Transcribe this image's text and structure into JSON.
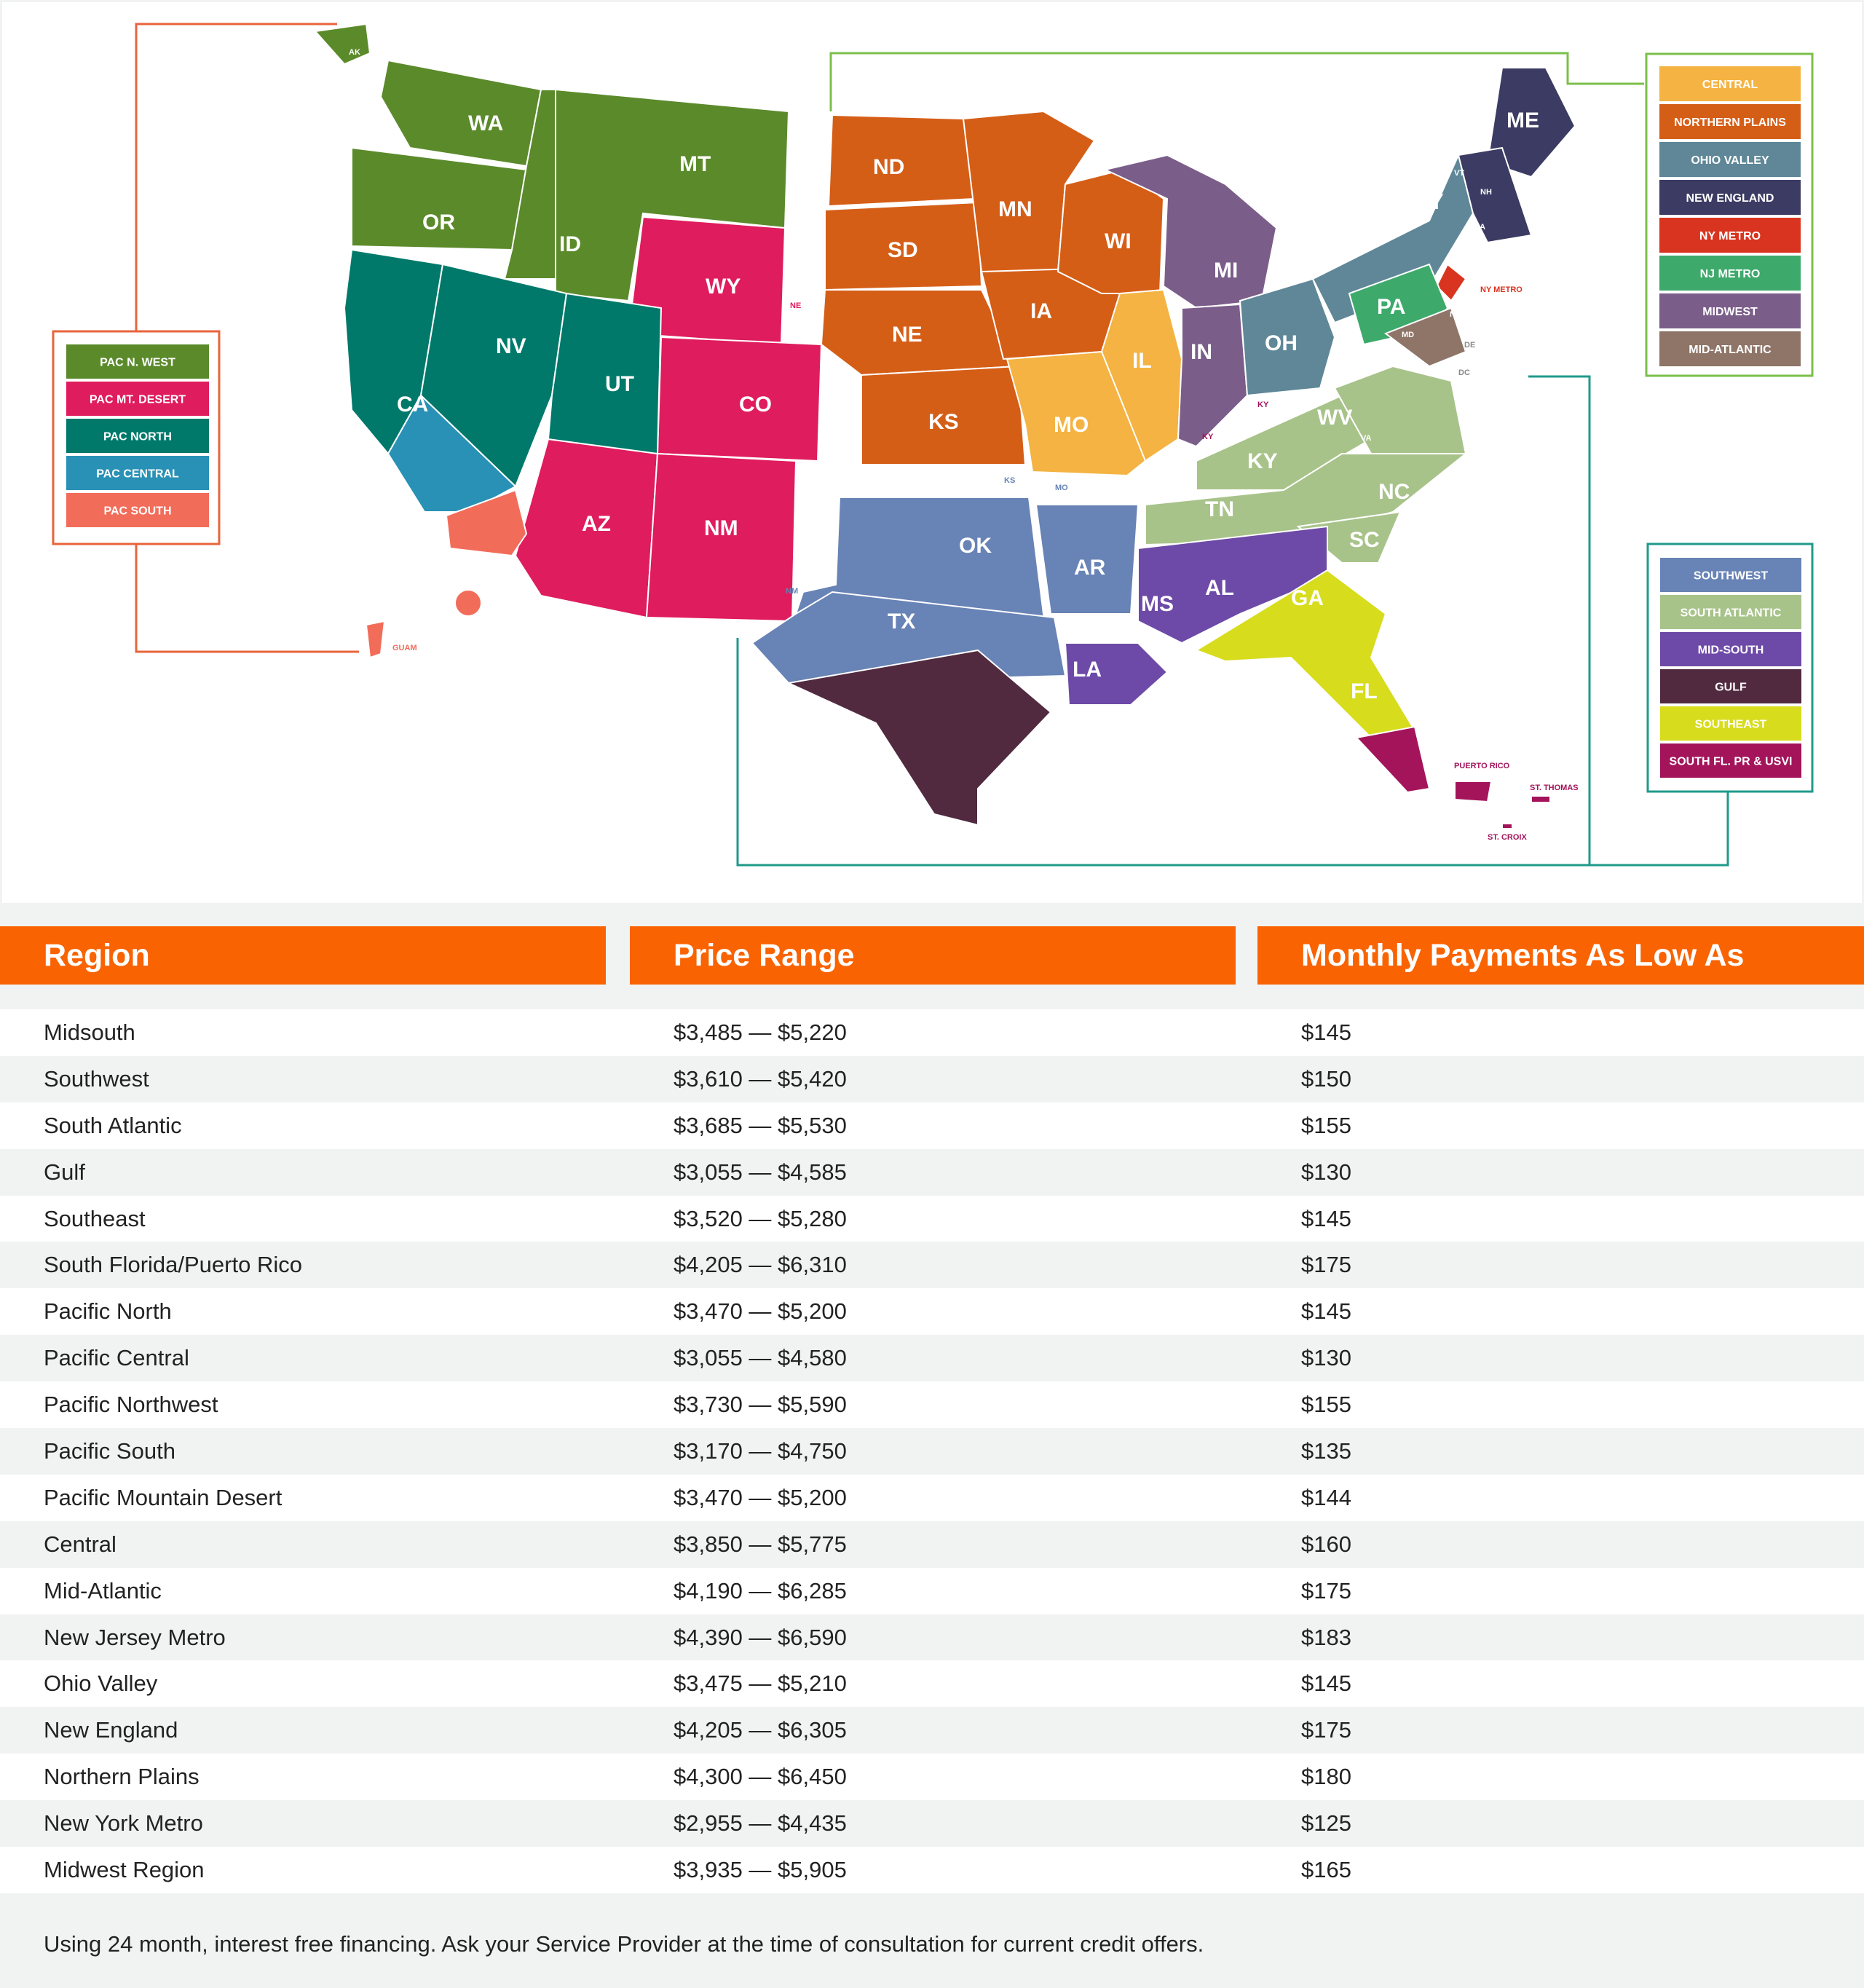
{
  "map": {
    "west_legend": [
      {
        "label": "PAC N. WEST",
        "color": "#5b8a2b"
      },
      {
        "label": "PAC MT. DESERT",
        "color": "#df1c5d"
      },
      {
        "label": "PAC NORTH",
        "color": "#00796b"
      },
      {
        "label": "PAC CENTRAL",
        "color": "#2891b5"
      },
      {
        "label": "PAC SOUTH",
        "color": "#f26c5a"
      }
    ],
    "north_legend": [
      {
        "label": "CENTRAL",
        "color": "#f4b342"
      },
      {
        "label": "NORTHERN PLAINS",
        "color": "#d55e17"
      },
      {
        "label": "OHIO VALLEY",
        "color": "#5f8797"
      },
      {
        "label": "NEW ENGLAND",
        "color": "#3b3b63"
      },
      {
        "label": "NY METRO",
        "color": "#d8341f"
      },
      {
        "label": "NJ METRO",
        "color": "#3daa6b"
      },
      {
        "label": "MIDWEST",
        "color": "#7b5d8a"
      },
      {
        "label": "MID-ATLANTIC",
        "color": "#8e7568"
      }
    ],
    "south_legend": [
      {
        "label": "SOUTHWEST",
        "color": "#6883b5"
      },
      {
        "label": "SOUTH ATLANTIC",
        "color": "#a8c38a"
      },
      {
        "label": "MID-SOUTH",
        "color": "#6d4aa7"
      },
      {
        "label": "GULF",
        "color": "#512a40"
      },
      {
        "label": "SOUTHEAST",
        "color": "#d7dc1d"
      },
      {
        "label": "SOUTH FL. PR & USVI",
        "color": "#a3145b"
      }
    ],
    "state_labels": [
      "AK",
      "WA",
      "MT",
      "OR",
      "ID",
      "WY",
      "ND",
      "MN",
      "WI",
      "SD",
      "MI",
      "NY",
      "ME",
      "VT",
      "NH",
      "MA",
      "CT",
      "RI",
      "NE",
      "IA",
      "IL",
      "IN",
      "OH",
      "PA",
      "NJ",
      "DE",
      "MD",
      "DC",
      "NV",
      "UT",
      "CA",
      "CO",
      "KS",
      "MO",
      "KY",
      "WV",
      "VA",
      "NC",
      "TN",
      "SC",
      "OK",
      "AR",
      "AZ",
      "NM",
      "TX",
      "MS",
      "AL",
      "GA",
      "LA",
      "FL"
    ],
    "small_labels": {
      "ne": "NE",
      "ny_metro": "NY METRO",
      "ky1": "KY",
      "ky2": "KY",
      "ks": "KS",
      "mo": "MO",
      "nm": "NM",
      "guam": "GUAM",
      "puerto_rico": "PUERTO RICO",
      "st_thomas": "ST. THOMAS",
      "st_croix": "ST. CROIX"
    }
  },
  "table": {
    "headers": {
      "region": "Region",
      "price": "Price Range",
      "monthly": "Monthly Payments As Low As"
    },
    "rows": [
      {
        "region": "Midsouth",
        "price": "$3,485 — $5,220",
        "monthly": "$145"
      },
      {
        "region": "Southwest",
        "price": "$3,610 — $5,420",
        "monthly": "$150"
      },
      {
        "region": "South Atlantic",
        "price": "$3,685 — $5,530",
        "monthly": "$155"
      },
      {
        "region": "Gulf",
        "price": "$3,055 — $4,585",
        "monthly": "$130"
      },
      {
        "region": "Southeast",
        "price": "$3,520 — $5,280",
        "monthly": "$145"
      },
      {
        "region": "South Florida/Puerto Rico",
        "price": "$4,205 — $6,310",
        "monthly": "$175"
      },
      {
        "region": "Pacific North",
        "price": "$3,470 — $5,200",
        "monthly": "$145"
      },
      {
        "region": "Pacific Central",
        "price": "$3,055 — $4,580",
        "monthly": "$130"
      },
      {
        "region": "Pacific Northwest",
        "price": "$3,730 — $5,590",
        "monthly": "$155"
      },
      {
        "region": "Pacific South",
        "price": "$3,170 — $4,750",
        "monthly": "$135"
      },
      {
        "region": "Pacific Mountain Desert",
        "price": "$3,470 — $5,200",
        "monthly": "$144"
      },
      {
        "region": "Central",
        "price": "$3,850 — $5,775",
        "monthly": "$160"
      },
      {
        "region": "Mid-Atlantic",
        "price": "$4,190 — $6,285",
        "monthly": "$175"
      },
      {
        "region": "New Jersey Metro",
        "price": "$4,390 — $6,590",
        "monthly": "$183"
      },
      {
        "region": "Ohio Valley",
        "price": "$3,475 — $5,210",
        "monthly": "$145"
      },
      {
        "region": "New England",
        "price": "$4,205 — $6,305",
        "monthly": "$175"
      },
      {
        "region": "Northern Plains",
        "price": "$4,300 — $6,450",
        "monthly": "$180"
      },
      {
        "region": "New York Metro",
        "price": "$2,955 — $4,435",
        "monthly": "$125"
      },
      {
        "region": "Midwest Region",
        "price": "$3,935 — $5,905",
        "monthly": "$165"
      }
    ]
  },
  "footnote": "Using 24 month, interest free financing. Ask your Service Provider at the time of consultation for current credit offers."
}
